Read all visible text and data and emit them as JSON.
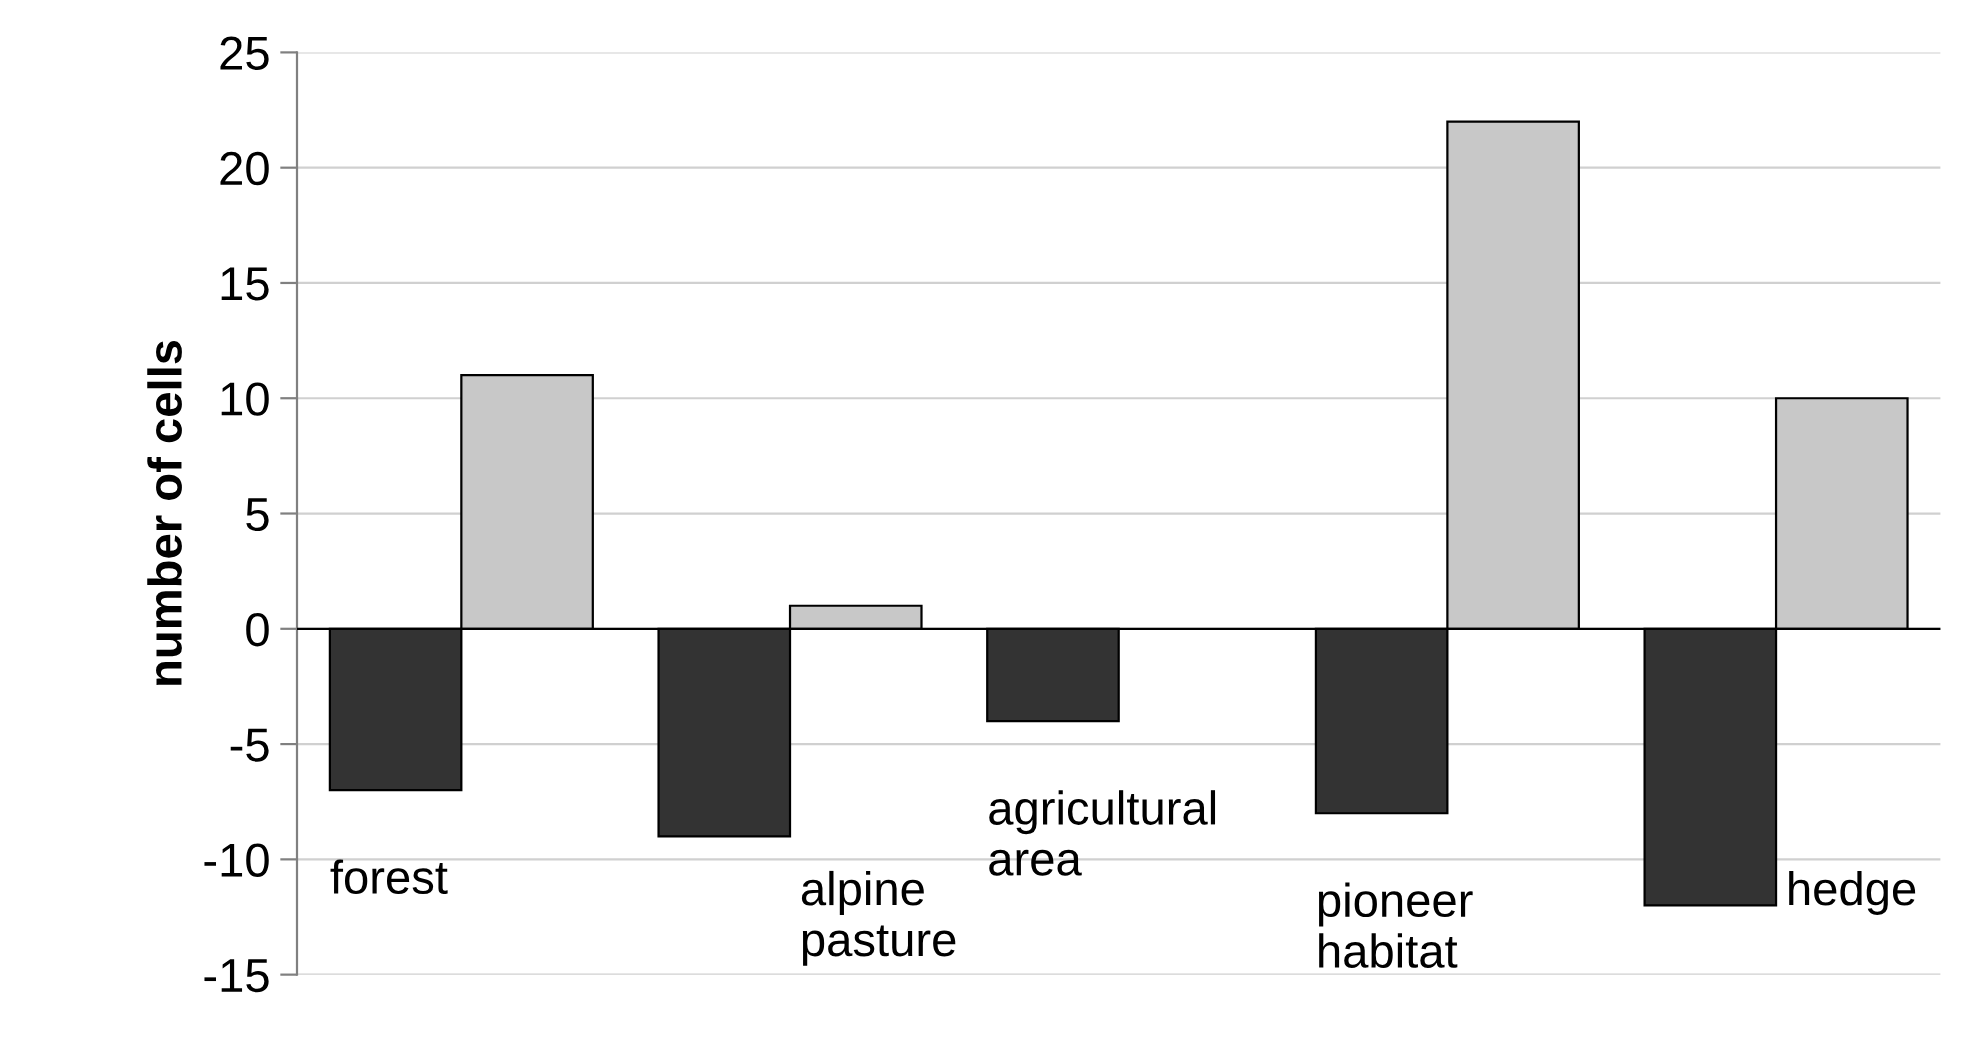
{
  "chart_data": {
    "type": "bar",
    "ylabel": "number of cells",
    "categories": [
      "forest",
      "alpine\npasture",
      "agricultural\narea",
      "pioneer\nhabitat",
      "hedge"
    ],
    "series": [
      {
        "color": "#333333",
        "values": [
          -7,
          -9,
          -4,
          -8,
          -12
        ]
      },
      {
        "color": "#c8c8c8",
        "values": [
          11,
          1,
          null,
          22,
          10
        ]
      }
    ],
    "ylim": [
      -15,
      25
    ],
    "yticks": [
      -15,
      -10,
      -5,
      0,
      5,
      10,
      15,
      20,
      25
    ],
    "grid": "y",
    "legend": false
  }
}
